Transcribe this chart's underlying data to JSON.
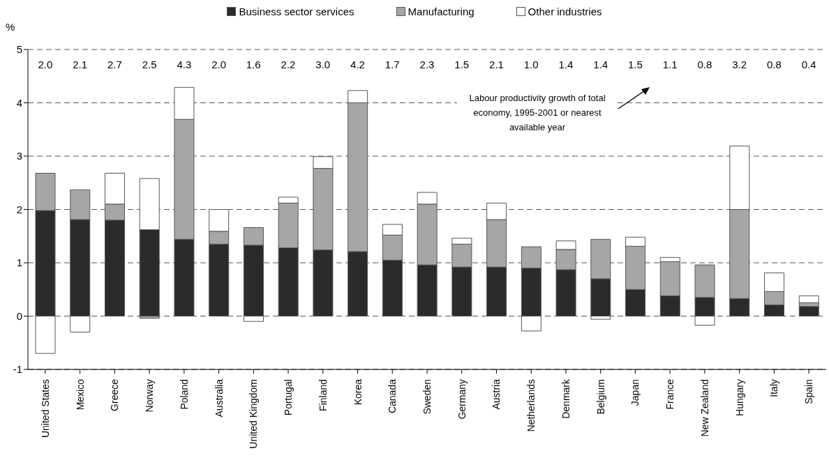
{
  "chart_data": {
    "type": "bar",
    "stacked": true,
    "ylabel": "%",
    "categories": [
      "United States",
      "Mexico",
      "Greece",
      "Norway",
      "Poland",
      "Australia",
      "United Kingdom",
      "Portugal",
      "Finland",
      "Korea",
      "Canada",
      "Sweden",
      "Germany",
      "Austria",
      "Netherlands",
      "Denmark",
      "Belgium",
      "Japan",
      "France",
      "New Zealand",
      "Hungary",
      "Italy",
      "Spain"
    ],
    "series": [
      {
        "name": "Business sector services",
        "color": "#2b2b2b",
        "values": [
          1.98,
          1.81,
          1.8,
          1.62,
          1.44,
          1.35,
          1.33,
          1.28,
          1.24,
          1.21,
          1.05,
          0.96,
          0.92,
          0.92,
          0.9,
          0.87,
          0.7,
          0.5,
          0.38,
          0.35,
          0.33,
          0.21,
          0.18
        ]
      },
      {
        "name": "Manufacturing",
        "color": "#a6a6a6",
        "values": [
          0.7,
          0.56,
          0.3,
          -0.04,
          2.25,
          0.24,
          0.33,
          0.84,
          1.53,
          2.79,
          0.47,
          1.14,
          0.43,
          0.89,
          0.4,
          0.38,
          0.74,
          0.81,
          0.64,
          0.61,
          1.67,
          0.25,
          0.07
        ]
      },
      {
        "name": "Other industries",
        "color": "#ffffff",
        "values": [
          -0.7,
          -0.3,
          0.58,
          0.96,
          0.6,
          0.41,
          -0.1,
          0.11,
          0.22,
          0.23,
          0.2,
          0.22,
          0.11,
          0.31,
          -0.28,
          0.16,
          -0.06,
          0.17,
          0.08,
          -0.17,
          1.19,
          0.35,
          0.13
        ]
      }
    ],
    "ylim": [
      -1,
      5
    ],
    "yticks": [
      -1,
      0,
      1,
      2,
      3,
      4,
      5
    ],
    "grid": "y",
    "legend": "top",
    "annotations": [
      "2.0",
      "2.1",
      "2.7",
      "2.5",
      "4.3",
      "2.0",
      "1.6",
      "2.2",
      "3.0",
      "4.2",
      "1.7",
      "2.3",
      "1.5",
      "2.1",
      "1.0",
      "1.4",
      "1.4",
      "1.5",
      "1.1",
      "0.8",
      "3.2",
      "0.8",
      "0.4",
      "Labour productivity growth of total economy, 1995-2001 or nearest available year"
    ]
  }
}
